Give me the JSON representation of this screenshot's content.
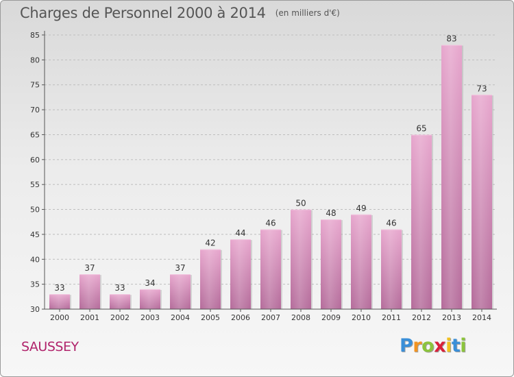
{
  "title": "Charges de Personnel 2000 à 2014",
  "subtitle": "(en milliers d'€)",
  "commune": "SAUSSEY",
  "brand": {
    "letters": [
      "P",
      "r",
      "o",
      "x",
      "i",
      "t",
      "i"
    ],
    "colors": [
      "#3a8fd8",
      "#f29422",
      "#8cc43c",
      "#d9213a",
      "#f0c020",
      "#3a8fd8",
      "#8cc43c"
    ]
  },
  "chart_data": {
    "type": "bar",
    "categories": [
      "2000",
      "2001",
      "2002",
      "2003",
      "2004",
      "2005",
      "2006",
      "2007",
      "2008",
      "2009",
      "2010",
      "2011",
      "2012",
      "2013",
      "2014"
    ],
    "values": [
      33,
      37,
      33,
      34,
      37,
      42,
      44,
      46,
      50,
      48,
      49,
      46,
      65,
      83,
      73
    ],
    "title": "Charges de Personnel 2000 à 2014",
    "subtitle": "(en milliers d'€)",
    "xlabel": "",
    "ylabel": "",
    "ylim": [
      30,
      85
    ],
    "yticks": [
      30,
      35,
      40,
      45,
      50,
      55,
      60,
      65,
      70,
      75,
      80,
      85
    ],
    "grid": "horizontal dashed",
    "data_labels": true,
    "bar_color": "#d98bb8"
  }
}
